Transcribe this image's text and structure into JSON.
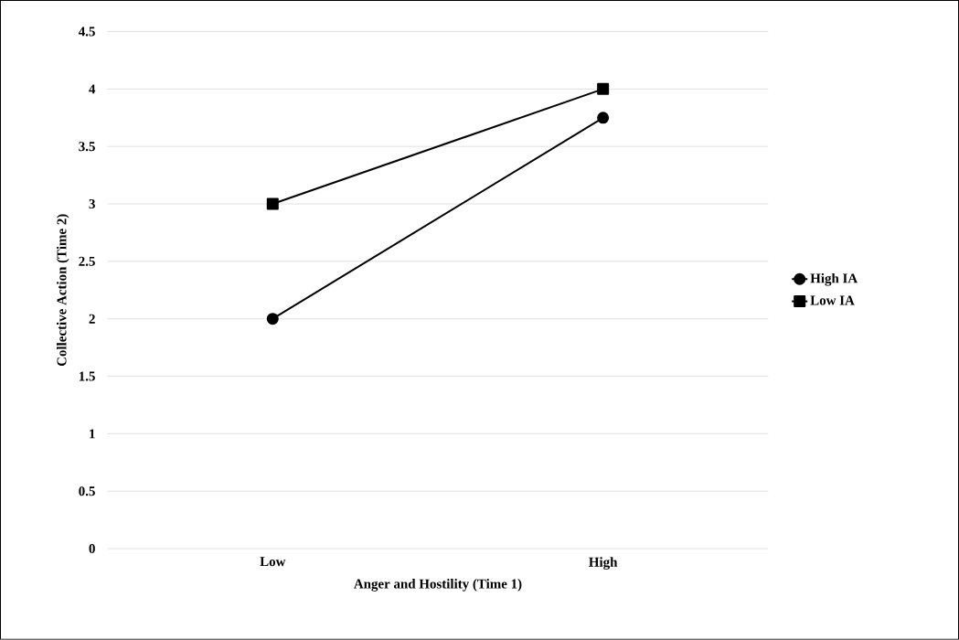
{
  "chart_data": {
    "type": "line",
    "xlabel": "Anger and Hostility (Time 1)",
    "ylabel": "Collective Action (Time 2)",
    "categories": [
      "Low",
      "High"
    ],
    "series": [
      {
        "name": "High IA",
        "color": "#000000",
        "values": [
          2,
          3.75
        ],
        "marker": "circle"
      },
      {
        "name": "Low IA",
        "color": "#000000",
        "values": [
          3,
          4
        ],
        "marker": "square"
      }
    ],
    "ylim": [
      0,
      4.5
    ],
    "yticks": [
      0,
      0.5,
      1,
      1.5,
      2,
      2.5,
      3,
      3.5,
      4,
      4.5
    ],
    "grid": "y",
    "legend": "right",
    "line_style": "solid"
  }
}
